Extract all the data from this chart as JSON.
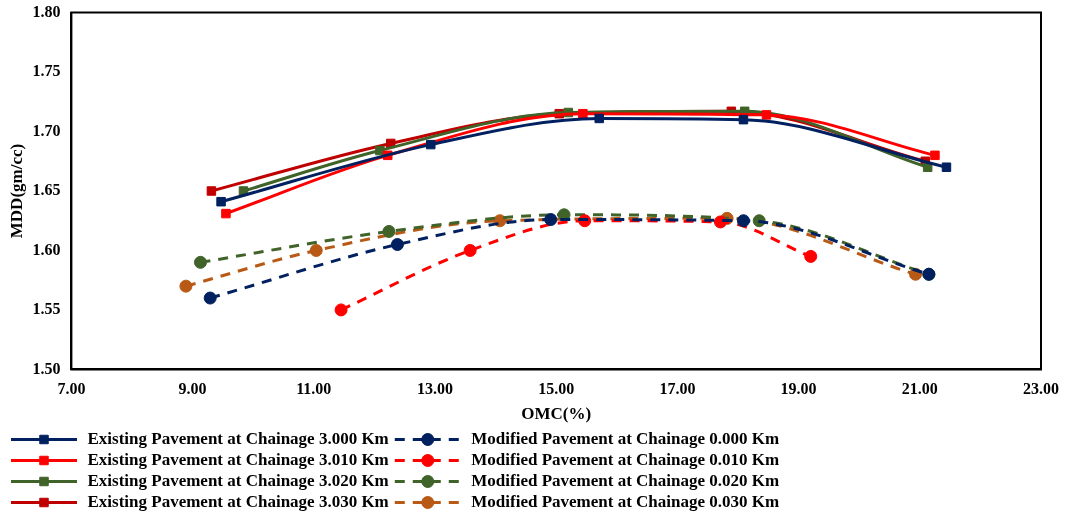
{
  "chart_data": {
    "type": "line",
    "xlabel": "OMC(%)",
    "ylabel": "MDD(gm/cc)",
    "xlim": [
      7,
      23
    ],
    "xticks": [
      {
        "value": 7,
        "label": "7.00"
      },
      {
        "value": 9,
        "label": "9.00"
      },
      {
        "value": 11,
        "label": "11.00"
      },
      {
        "value": 13,
        "label": "13.00"
      },
      {
        "value": 15,
        "label": "15.00"
      },
      {
        "value": 17,
        "label": "17.00"
      },
      {
        "value": 19,
        "label": "19.00"
      },
      {
        "value": 21,
        "label": "21.00"
      },
      {
        "value": 23,
        "label": "23.00"
      }
    ],
    "ylim": [
      1.5,
      1.8
    ],
    "yticks": [
      {
        "value": 1.5,
        "label": "1.50"
      },
      {
        "value": 1.55,
        "label": "1.55"
      },
      {
        "value": 1.6,
        "label": "1.60"
      },
      {
        "value": 1.65,
        "label": "1.65"
      },
      {
        "value": 1.7,
        "label": "1.70"
      },
      {
        "value": 1.75,
        "label": "1.75"
      },
      {
        "value": 1.8,
        "label": "1.80"
      }
    ],
    "grid": false,
    "legend": "bottom",
    "series": [
      {
        "name": "Existing Pavement at Chainage 3.000 Km",
        "color": "#002060",
        "marker": "square",
        "line_style": "solid",
        "x": [
          9.47,
          12.93,
          15.71,
          18.09,
          21.44
        ],
        "values": [
          1.641,
          1.689,
          1.711,
          1.71,
          1.67
        ]
      },
      {
        "name": "Existing Pavement at Chainage 3.010 Km",
        "color": "#ff0000",
        "marker": "square",
        "line_style": "solid",
        "x": [
          9.55,
          12.22,
          15.44,
          18.47,
          21.25
        ],
        "values": [
          1.631,
          1.68,
          1.715,
          1.714,
          1.68
        ]
      },
      {
        "name": "Existing Pavement at Chainage 3.020 Km",
        "color": "#3f6328",
        "marker": "square",
        "line_style": "solid",
        "x": [
          9.84,
          12.09,
          15.2,
          18.11,
          21.13
        ],
        "values": [
          1.65,
          1.684,
          1.716,
          1.717,
          1.67
        ]
      },
      {
        "name": "Existing Pavement at Chainage 3.030 Km",
        "color": "#c00000",
        "marker": "square",
        "line_style": "solid",
        "x": [
          9.31,
          12.27,
          15.05,
          17.89,
          21.09
        ],
        "values": [
          1.65,
          1.69,
          1.715,
          1.717,
          1.675
        ]
      },
      {
        "name": "Modified Pavement at Chainage 0.000 Km",
        "color": "#002060",
        "marker": "circle",
        "line_style": "dashed",
        "x": [
          9.29,
          12.38,
          14.91,
          18.09,
          21.15
        ],
        "values": [
          1.56,
          1.605,
          1.626,
          1.625,
          1.58
        ]
      },
      {
        "name": "Modified Pavement at Chainage 0.010 Km",
        "color": "#ff0000",
        "marker": "circle",
        "line_style": "dashed",
        "x": [
          11.45,
          13.58,
          15.47,
          17.71,
          19.2
        ],
        "values": [
          1.55,
          1.6,
          1.625,
          1.624,
          1.595
        ]
      },
      {
        "name": "Modified Pavement at Chainage 0.020 Km",
        "color": "#3f6328",
        "marker": "circle",
        "line_style": "dashed",
        "x": [
          9.13,
          12.24,
          15.13,
          18.35,
          21.15
        ],
        "values": [
          1.59,
          1.616,
          1.63,
          1.625,
          1.58
        ]
      },
      {
        "name": "Modified Pavement at Chainage 0.030 Km",
        "color": "#b85a16",
        "marker": "circle",
        "line_style": "dashed",
        "x": [
          8.89,
          11.04,
          14.07,
          17.82,
          20.93
        ],
        "values": [
          1.57,
          1.6,
          1.625,
          1.627,
          1.58
        ]
      }
    ]
  }
}
